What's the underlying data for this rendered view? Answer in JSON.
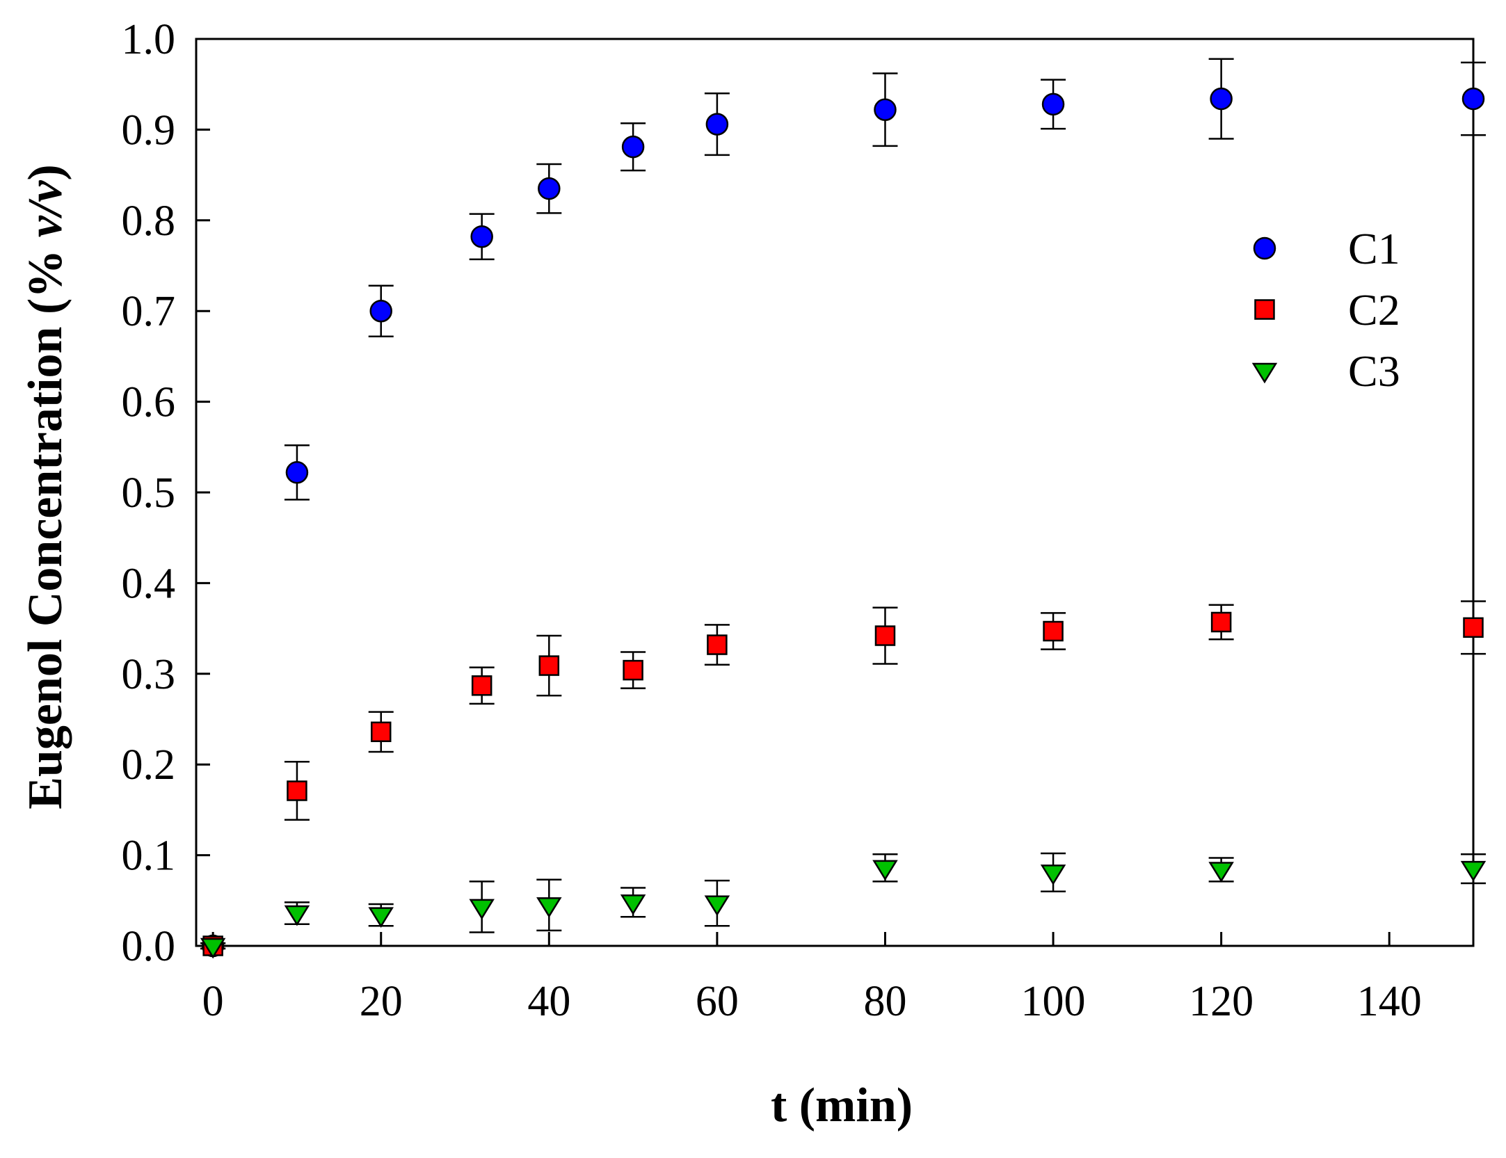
{
  "chart_data": {
    "type": "scatter",
    "title": "",
    "xlabel": "t (min)",
    "ylabel_prefix": "Eugenol Concentration (% ",
    "ylabel_italic": "v/v",
    "ylabel_suffix": ")",
    "xlim": [
      -2,
      150
    ],
    "ylim": [
      0.0,
      1.0
    ],
    "xticks": [
      0,
      20,
      40,
      60,
      80,
      100,
      120,
      140
    ],
    "yticks": [
      0.0,
      0.1,
      0.2,
      0.3,
      0.4,
      0.5,
      0.6,
      0.7,
      0.8,
      0.9,
      1.0
    ],
    "ytick_labels": [
      "0.0",
      "0.1",
      "0.2",
      "0.3",
      "0.4",
      "0.5",
      "0.6",
      "0.7",
      "0.8",
      "0.9",
      "1.0"
    ],
    "grid": false,
    "legend_position": "right",
    "series": [
      {
        "name": "C1",
        "marker": "circle",
        "color": "#0000ff",
        "x": [
          0,
          10,
          20,
          32,
          40,
          50,
          60,
          80,
          100,
          120,
          150
        ],
        "y": [
          0.0,
          0.522,
          0.7,
          0.782,
          0.835,
          0.881,
          0.906,
          0.922,
          0.928,
          0.934,
          0.934
        ],
        "err": [
          0.003,
          0.03,
          0.028,
          0.025,
          0.027,
          0.026,
          0.034,
          0.04,
          0.027,
          0.044,
          0.04
        ]
      },
      {
        "name": "C2",
        "marker": "square",
        "color": "#ff0000",
        "x": [
          0,
          10,
          20,
          32,
          40,
          50,
          60,
          80,
          100,
          120,
          150
        ],
        "y": [
          0.0,
          0.171,
          0.236,
          0.287,
          0.309,
          0.304,
          0.332,
          0.342,
          0.347,
          0.357,
          0.351
        ],
        "err": [
          0.003,
          0.032,
          0.022,
          0.02,
          0.033,
          0.02,
          0.022,
          0.031,
          0.02,
          0.019,
          0.029
        ]
      },
      {
        "name": "C3",
        "marker": "triangle-down",
        "color": "#00c000",
        "x": [
          0,
          10,
          20,
          32,
          40,
          50,
          60,
          80,
          100,
          120,
          150
        ],
        "y": [
          0.0,
          0.036,
          0.034,
          0.043,
          0.045,
          0.048,
          0.047,
          0.086,
          0.081,
          0.084,
          0.085
        ],
        "err": [
          0.002,
          0.012,
          0.012,
          0.028,
          0.028,
          0.016,
          0.025,
          0.015,
          0.021,
          0.013,
          0.016
        ]
      }
    ]
  }
}
